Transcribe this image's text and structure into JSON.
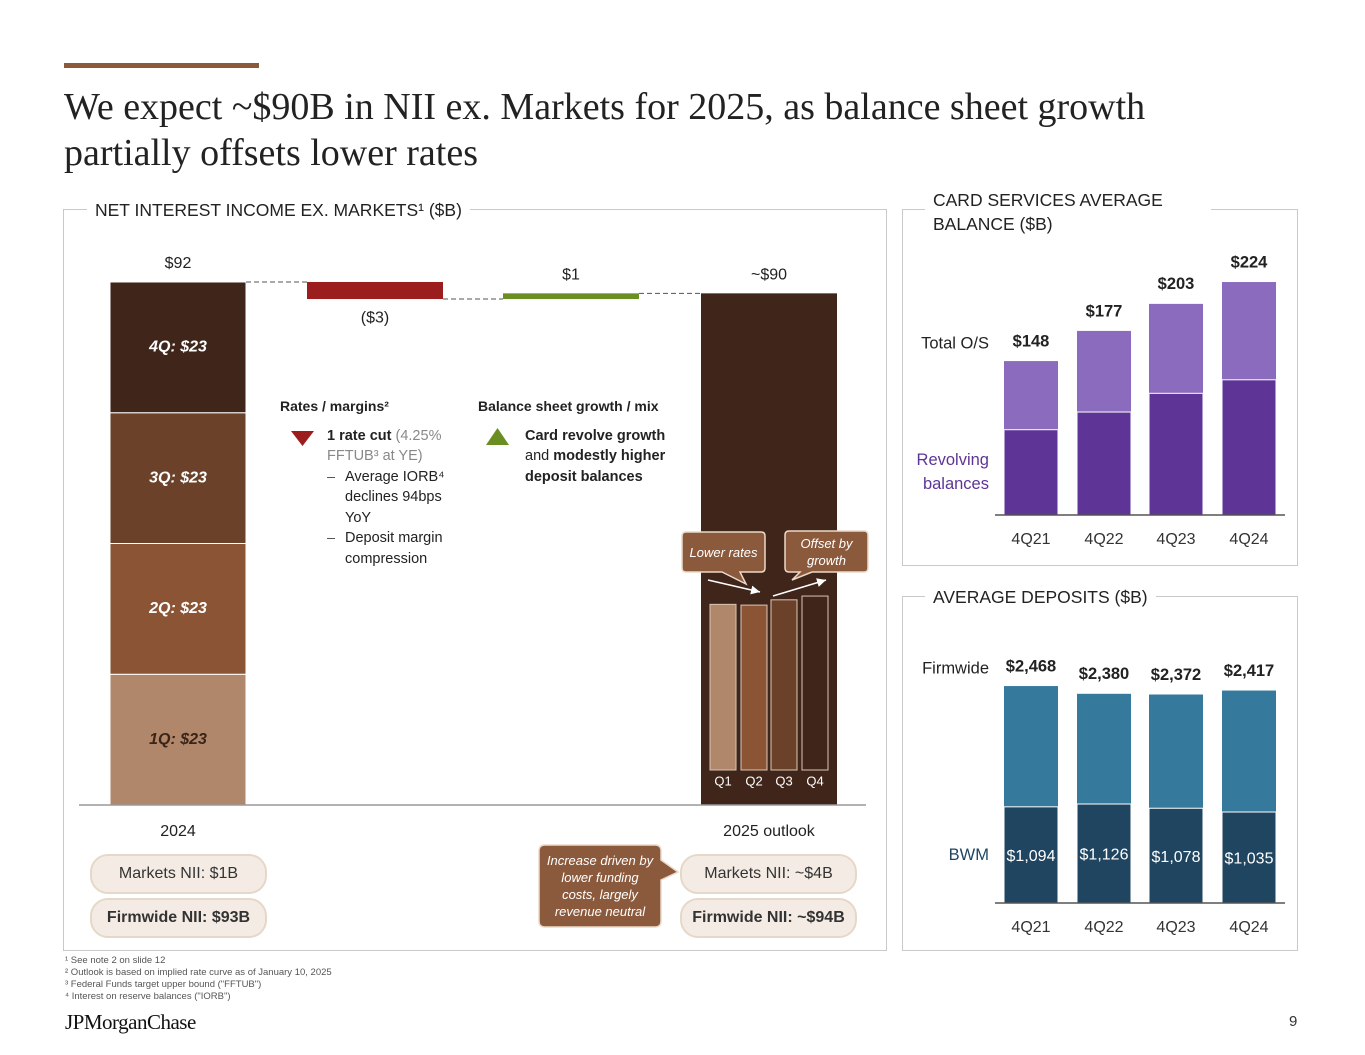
{
  "header": {
    "title": "We expect ~$90B in NII ex. Markets for 2025, as balance sheet growth partially offsets lower rates"
  },
  "chart_data": [
    {
      "type": "waterfall",
      "title": "NET INTEREST INCOME EX. MARKETS¹ ($B)",
      "categories": [
        "2024",
        null,
        null,
        "2025 outlook"
      ],
      "values": [
        92,
        -3,
        1,
        90
      ],
      "value_labels": [
        "$92",
        "($3)",
        "$1",
        "~$90"
      ],
      "colors": [
        "#40251a",
        "#9c1d1d",
        "#6b8e23",
        "#40251a"
      ],
      "segments": {
        "values": [
          23,
          23,
          23,
          23
        ],
        "value_labels": [
          "1Q: $23",
          "2Q: $23",
          "3Q: $23",
          "4Q: $23"
        ],
        "colors": [
          "#b0876a",
          "#8b5535",
          "#6b4229",
          "#40251a"
        ]
      },
      "quarter_bars": {
        "categories": [
          "Q1",
          "Q2",
          "Q3",
          "Q4"
        ],
        "values": [
          22.0,
          21.9,
          22.6,
          23.1
        ],
        "colors": [
          "#b0876a",
          "#8b5535",
          "#6b4229",
          "#40251a"
        ]
      },
      "drivers": [
        {
          "heading": "Rates / margins²",
          "lead": "1 rate cut",
          "note": "(4.25% FFTUB³ at YE)",
          "points": [
            "Average IORB⁴ declines 94bps YoY",
            "Deposit margin compression"
          ]
        },
        {
          "heading": "Balance sheet growth / mix",
          "parts": [
            "Card revolve growth",
            " and ",
            "modestly higher deposit balances"
          ]
        }
      ],
      "callouts": [
        "Lower rates",
        "Offset by growth",
        "Increase driven by lower funding costs, largely revenue neutral"
      ],
      "summaries": [
        [
          "Markets NII: $1B",
          "Firmwide NII: $93B"
        ],
        [
          "Markets NII: ~$4B",
          "Firmwide NII: ~$94B"
        ]
      ]
    },
    {
      "type": "stacked_bar",
      "title": "CARD SERVICES AVERAGE BALANCE ($B)",
      "categories": [
        "4Q21",
        "4Q22",
        "4Q23",
        "4Q24"
      ],
      "series": [
        {
          "name": "Total O/S",
          "color": "#8a6bbd",
          "values": [
            148,
            177,
            203,
            224
          ],
          "value_labels": [
            "$148",
            "$177",
            "$203",
            "$224"
          ]
        },
        {
          "name": "Revolving balances",
          "color": "#5e3596",
          "values": [
            82,
            99,
            117,
            130
          ]
        }
      ]
    },
    {
      "type": "stacked_bar",
      "title": "AVERAGE DEPOSITS ($B)",
      "categories": [
        "4Q21",
        "4Q22",
        "4Q23",
        "4Q24"
      ],
      "series": [
        {
          "name": "Firmwide",
          "color": "#35799c",
          "values": [
            2468,
            2380,
            2372,
            2417
          ],
          "value_labels": [
            "$2,468",
            "$2,380",
            "$2,372",
            "$2,417"
          ]
        },
        {
          "name": "BWM",
          "color": "#1f4561",
          "values": [
            1094,
            1126,
            1078,
            1035
          ],
          "value_labels": [
            "$1,094",
            "$1,126",
            "$1,078",
            "$1,035"
          ]
        }
      ]
    }
  ],
  "footnotes": [
    "¹ See note 2 on slide 12",
    "² Outlook is based on implied rate curve as of January 10, 2025",
    "³ Federal Funds target upper bound (\"FFTUB\")",
    "⁴ Interest on reserve balances (\"IORB\")"
  ],
  "logo": "JPMorganChase",
  "page_number": "9"
}
